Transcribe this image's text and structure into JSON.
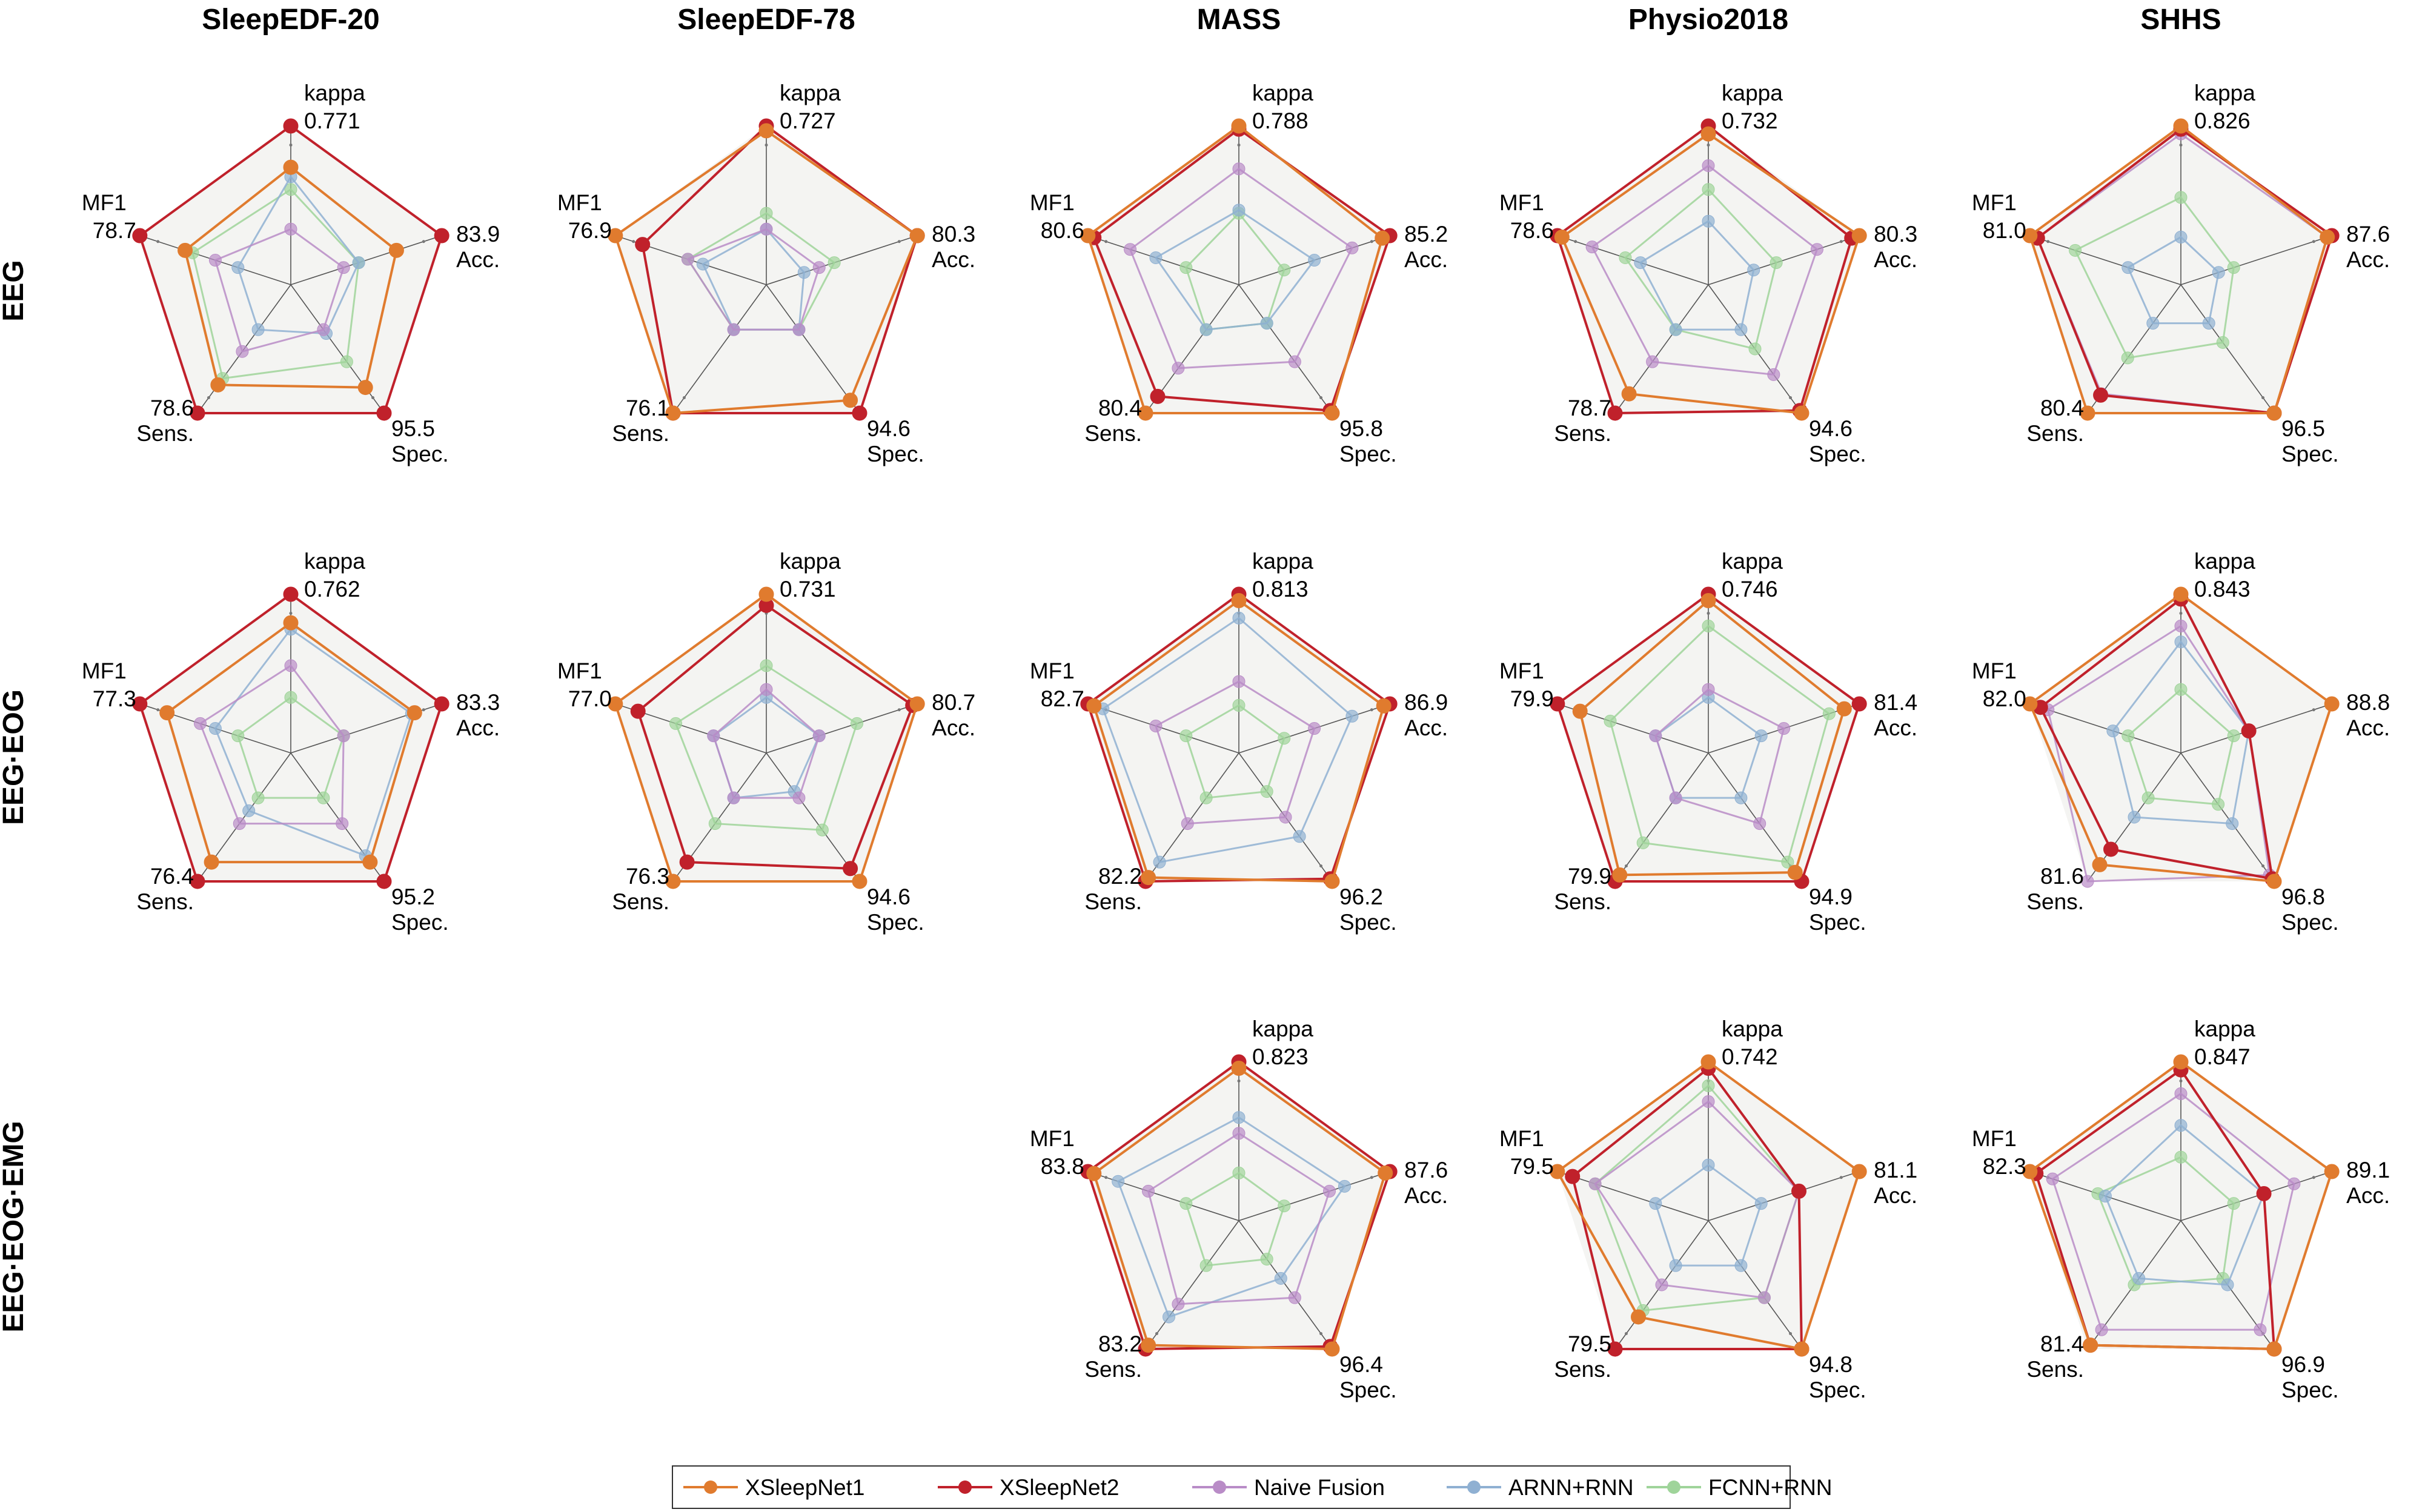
{
  "columns": [
    "SleepEDF-20",
    "SleepEDF-78",
    "MASS",
    "Physio2018",
    "SHHS"
  ],
  "rows": [
    "EEG",
    "EEG·EOG",
    "EEG·EOG·EMG"
  ],
  "axes": [
    "kappa",
    "Acc.",
    "Spec.",
    "Sens.",
    "MF1"
  ],
  "colors": {
    "XSleepNet1": "#e07b2e",
    "XSleepNet2": "#c0212b",
    "Naive Fusion": "#b98cc7",
    "ARNN+RNN": "#8fb0d2",
    "FCNN+RNN": "#9fd49a"
  },
  "legend": [
    "XSleepNet1",
    "XSleepNet2",
    "Naive Fusion",
    "ARNN+RNN",
    "FCNN+RNN"
  ],
  "chart_data": [
    {
      "type": "radar",
      "row": "EEG",
      "column": "SleepEDF-20",
      "axis_max": {
        "kappa": "0.771",
        "Acc.": "83.9",
        "Spec.": "95.5",
        "Sens.": "78.6",
        "MF1": "78.7"
      },
      "series": [
        {
          "name": "XSleepNet1",
          "values": [
            0.74,
            0.7,
            0.8,
            0.78,
            0.7
          ]
        },
        {
          "name": "XSleepNet2",
          "values": [
            1,
            1,
            1,
            1,
            1
          ]
        },
        {
          "name": "Naive Fusion",
          "values": [
            0.35,
            0.35,
            0.35,
            0.52,
            0.5
          ]
        },
        {
          "name": "ARNN+RNN",
          "values": [
            0.68,
            0.45,
            0.38,
            0.35,
            0.35
          ]
        },
        {
          "name": "FCNN+RNN",
          "values": [
            0.6,
            0.45,
            0.6,
            0.73,
            0.65
          ]
        }
      ]
    },
    {
      "type": "radar",
      "row": "EEG",
      "column": "SleepEDF-78",
      "axis_max": {
        "kappa": "0.727",
        "Acc.": "80.3",
        "Spec.": "94.6",
        "Sens.": "76.1",
        "MF1": "76.9"
      },
      "series": [
        {
          "name": "XSleepNet1",
          "values": [
            0.97,
            1,
            0.9,
            1,
            1
          ]
        },
        {
          "name": "XSleepNet2",
          "values": [
            1,
            1,
            1,
            1,
            0.82
          ]
        },
        {
          "name": "Naive Fusion",
          "values": [
            0.35,
            0.35,
            0.35,
            0.35,
            0.52
          ]
        },
        {
          "name": "ARNN+RNN",
          "values": [
            0.35,
            0.25,
            0.35,
            0.35,
            0.42
          ]
        },
        {
          "name": "FCNN+RNN",
          "values": [
            0.45,
            0.45,
            0.35,
            0.35,
            0.52
          ]
        }
      ]
    },
    {
      "type": "radar",
      "row": "EEG",
      "column": "MASS",
      "axis_max": {
        "kappa": "0.788",
        "Acc.": "85.2",
        "Spec.": "95.8",
        "Sens.": "80.4",
        "MF1": "80.6"
      },
      "series": [
        {
          "name": "XSleepNet1",
          "values": [
            1,
            0.95,
            1,
            1,
            1
          ]
        },
        {
          "name": "XSleepNet2",
          "values": [
            0.98,
            1,
            0.98,
            0.87,
            0.96
          ]
        },
        {
          "name": "Naive Fusion",
          "values": [
            0.73,
            0.75,
            0.6,
            0.65,
            0.72
          ]
        },
        {
          "name": "ARNN+RNN",
          "values": [
            0.47,
            0.5,
            0.3,
            0.35,
            0.55
          ]
        },
        {
          "name": "FCNN+RNN",
          "values": [
            0.45,
            0.3,
            0.3,
            0.35,
            0.35
          ]
        }
      ]
    },
    {
      "type": "radar",
      "row": "EEG",
      "column": "Physio2018",
      "axis_max": {
        "kappa": "0.732",
        "Acc.": "80.3",
        "Spec.": "94.6",
        "Sens.": "78.7",
        "MF1": "78.6"
      },
      "series": [
        {
          "name": "XSleepNet1",
          "values": [
            0.95,
            1,
            1,
            0.85,
            0.97
          ]
        },
        {
          "name": "XSleepNet2",
          "values": [
            1,
            0.95,
            0.98,
            1,
            1
          ]
        },
        {
          "name": "Naive Fusion",
          "values": [
            0.75,
            0.72,
            0.7,
            0.6,
            0.77
          ]
        },
        {
          "name": "ARNN+RNN",
          "values": [
            0.4,
            0.3,
            0.35,
            0.35,
            0.45
          ]
        },
        {
          "name": "FCNN+RNN",
          "values": [
            0.6,
            0.45,
            0.5,
            0.35,
            0.55
          ]
        }
      ]
    },
    {
      "type": "radar",
      "row": "EEG",
      "column": "SHHS",
      "axis_max": {
        "kappa": "0.826",
        "Acc.": "87.6",
        "Spec.": "96.5",
        "Sens.": "80.4",
        "MF1": "81.0"
      },
      "series": [
        {
          "name": "XSleepNet1",
          "values": [
            1,
            0.97,
            1,
            1,
            1
          ]
        },
        {
          "name": "XSleepNet2",
          "values": [
            0.98,
            1,
            1,
            0.86,
            0.95
          ]
        },
        {
          "name": "Naive Fusion",
          "values": [
            0.95,
            0.97,
            1,
            0.85,
            0.95
          ]
        },
        {
          "name": "ARNN+RNN",
          "values": [
            0.3,
            0.25,
            0.3,
            0.3,
            0.35
          ]
        },
        {
          "name": "FCNN+RNN",
          "values": [
            0.55,
            0.35,
            0.45,
            0.57,
            0.7
          ]
        }
      ]
    },
    {
      "type": "radar",
      "row": "EEG·EOG",
      "column": "SleepEDF-20",
      "axis_max": {
        "kappa": "0.762",
        "Acc.": "83.3",
        "Spec.": "95.2",
        "Sens.": "76.4",
        "MF1": "77.3"
      },
      "series": [
        {
          "name": "XSleepNet1",
          "values": [
            0.82,
            0.82,
            0.85,
            0.85,
            0.82
          ]
        },
        {
          "name": "XSleepNet2",
          "values": [
            1,
            1,
            1,
            1,
            1
          ]
        },
        {
          "name": "Naive Fusion",
          "values": [
            0.55,
            0.35,
            0.55,
            0.55,
            0.6
          ]
        },
        {
          "name": "ARNN+RNN",
          "values": [
            0.78,
            0.8,
            0.8,
            0.45,
            0.5
          ]
        },
        {
          "name": "FCNN+RNN",
          "values": [
            0.35,
            0.35,
            0.35,
            0.35,
            0.35
          ]
        }
      ]
    },
    {
      "type": "radar",
      "row": "EEG·EOG",
      "column": "SleepEDF-78",
      "axis_max": {
        "kappa": "0.731",
        "Acc.": "80.7",
        "Spec.": "94.6",
        "Sens.": "76.3",
        "MF1": "77.0"
      },
      "series": [
        {
          "name": "XSleepNet1",
          "values": [
            1,
            1,
            1,
            1,
            1
          ]
        },
        {
          "name": "XSleepNet2",
          "values": [
            0.93,
            0.97,
            0.9,
            0.85,
            0.85
          ]
        },
        {
          "name": "Naive Fusion",
          "values": [
            0.4,
            0.35,
            0.35,
            0.35,
            0.35
          ]
        },
        {
          "name": "ARNN+RNN",
          "values": [
            0.35,
            0.35,
            0.3,
            0.35,
            0.35
          ]
        },
        {
          "name": "FCNN+RNN",
          "values": [
            0.55,
            0.6,
            0.6,
            0.55,
            0.6
          ]
        }
      ]
    },
    {
      "type": "radar",
      "row": "EEG·EOG",
      "column": "MASS",
      "axis_max": {
        "kappa": "0.813",
        "Acc.": "86.9",
        "Spec.": "96.2",
        "Sens.": "82.2",
        "MF1": "82.7"
      },
      "series": [
        {
          "name": "XSleepNet1",
          "values": [
            0.96,
            0.96,
            1,
            0.97,
            0.96
          ]
        },
        {
          "name": "XSleepNet2",
          "values": [
            1,
            1,
            0.98,
            1,
            1
          ]
        },
        {
          "name": "Naive Fusion",
          "values": [
            0.45,
            0.5,
            0.5,
            0.55,
            0.55
          ]
        },
        {
          "name": "ARNN+RNN",
          "values": [
            0.85,
            0.75,
            0.65,
            0.85,
            0.9
          ]
        },
        {
          "name": "FCNN+RNN",
          "values": [
            0.3,
            0.3,
            0.3,
            0.35,
            0.35
          ]
        }
      ]
    },
    {
      "type": "radar",
      "row": "EEG·EOG",
      "column": "Physio2018",
      "axis_max": {
        "kappa": "0.746",
        "Acc.": "81.4",
        "Spec.": "94.9",
        "Sens.": "79.9",
        "MF1": "79.9"
      },
      "series": [
        {
          "name": "XSleepNet1",
          "values": [
            0.96,
            0.9,
            0.93,
            0.95,
            0.85
          ]
        },
        {
          "name": "XSleepNet2",
          "values": [
            1,
            1,
            1,
            1,
            1
          ]
        },
        {
          "name": "Naive Fusion",
          "values": [
            0.4,
            0.5,
            0.55,
            0.35,
            0.35
          ]
        },
        {
          "name": "ARNN+RNN",
          "values": [
            0.35,
            0.35,
            0.35,
            0.35,
            0.35
          ]
        },
        {
          "name": "FCNN+RNN",
          "values": [
            0.8,
            0.8,
            0.85,
            0.7,
            0.65
          ]
        }
      ]
    },
    {
      "type": "radar",
      "row": "EEG·EOG",
      "column": "SHHS",
      "axis_max": {
        "kappa": "0.843",
        "Acc.": "88.8",
        "Spec.": "96.8",
        "Sens.": "81.6",
        "MF1": "82.0"
      },
      "series": [
        {
          "name": "XSleepNet1",
          "values": [
            1,
            1,
            1,
            0.87,
            1
          ]
        },
        {
          "name": "XSleepNet2",
          "values": [
            0.97,
            0.45,
            0.98,
            0.75,
            0.93
          ]
        },
        {
          "name": "Naive Fusion",
          "values": [
            0.8,
            0.45,
            0.95,
            1,
            0.88
          ]
        },
        {
          "name": "ARNN+RNN",
          "values": [
            0.7,
            0.45,
            0.55,
            0.5,
            0.45
          ]
        },
        {
          "name": "FCNN+RNN",
          "values": [
            0.4,
            0.35,
            0.4,
            0.35,
            0.35
          ]
        }
      ]
    },
    {
      "type": "radar",
      "row": "EEG·EOG·EMG",
      "column": "MASS",
      "axis_max": {
        "kappa": "0.823",
        "Acc.": "87.6",
        "Spec.": "96.4",
        "Sens.": "83.2",
        "MF1": "83.8"
      },
      "series": [
        {
          "name": "XSleepNet1",
          "values": [
            0.96,
            0.97,
            1,
            0.97,
            0.96
          ]
        },
        {
          "name": "XSleepNet2",
          "values": [
            1,
            1,
            0.98,
            1,
            1
          ]
        },
        {
          "name": "Naive Fusion",
          "values": [
            0.55,
            0.6,
            0.6,
            0.65,
            0.6
          ]
        },
        {
          "name": "ARNN+RNN",
          "values": [
            0.65,
            0.7,
            0.45,
            0.75,
            0.8
          ]
        },
        {
          "name": "FCNN+RNN",
          "values": [
            0.3,
            0.3,
            0.3,
            0.35,
            0.35
          ]
        }
      ]
    },
    {
      "type": "radar",
      "row": "EEG·EOG·EMG",
      "column": "Physio2018",
      "axis_max": {
        "kappa": "0.742",
        "Acc.": "81.1",
        "Spec.": "94.8",
        "Sens.": "79.5",
        "MF1": "79.5"
      },
      "series": [
        {
          "name": "XSleepNet1",
          "values": [
            1,
            1,
            1,
            0.75,
            1
          ]
        },
        {
          "name": "XSleepNet2",
          "values": [
            0.96,
            0.6,
            1,
            1,
            0.9
          ]
        },
        {
          "name": "Naive Fusion",
          "values": [
            0.75,
            0.6,
            0.6,
            0.5,
            0.75
          ]
        },
        {
          "name": "ARNN+RNN",
          "values": [
            0.35,
            0.35,
            0.35,
            0.35,
            0.35
          ]
        },
        {
          "name": "FCNN+RNN",
          "values": [
            0.85,
            0.6,
            0.6,
            0.7,
            0.75
          ]
        }
      ]
    },
    {
      "type": "radar",
      "row": "EEG·EOG·EMG",
      "column": "SHHS",
      "axis_max": {
        "kappa": "0.847",
        "Acc.": "89.1",
        "Spec.": "96.9",
        "Sens.": "81.4",
        "MF1": "82.3"
      },
      "series": [
        {
          "name": "XSleepNet1",
          "values": [
            1,
            1,
            1,
            0.97,
            1
          ]
        },
        {
          "name": "XSleepNet2",
          "values": [
            0.95,
            0.55,
            1,
            0.97,
            0.96
          ]
        },
        {
          "name": "Naive Fusion",
          "values": [
            0.8,
            0.75,
            0.85,
            0.85,
            0.85
          ]
        },
        {
          "name": "ARNN+RNN",
          "values": [
            0.6,
            0.55,
            0.5,
            0.45,
            0.5
          ]
        },
        {
          "name": "FCNN+RNN",
          "values": [
            0.4,
            0.35,
            0.45,
            0.5,
            0.55
          ]
        }
      ]
    }
  ]
}
